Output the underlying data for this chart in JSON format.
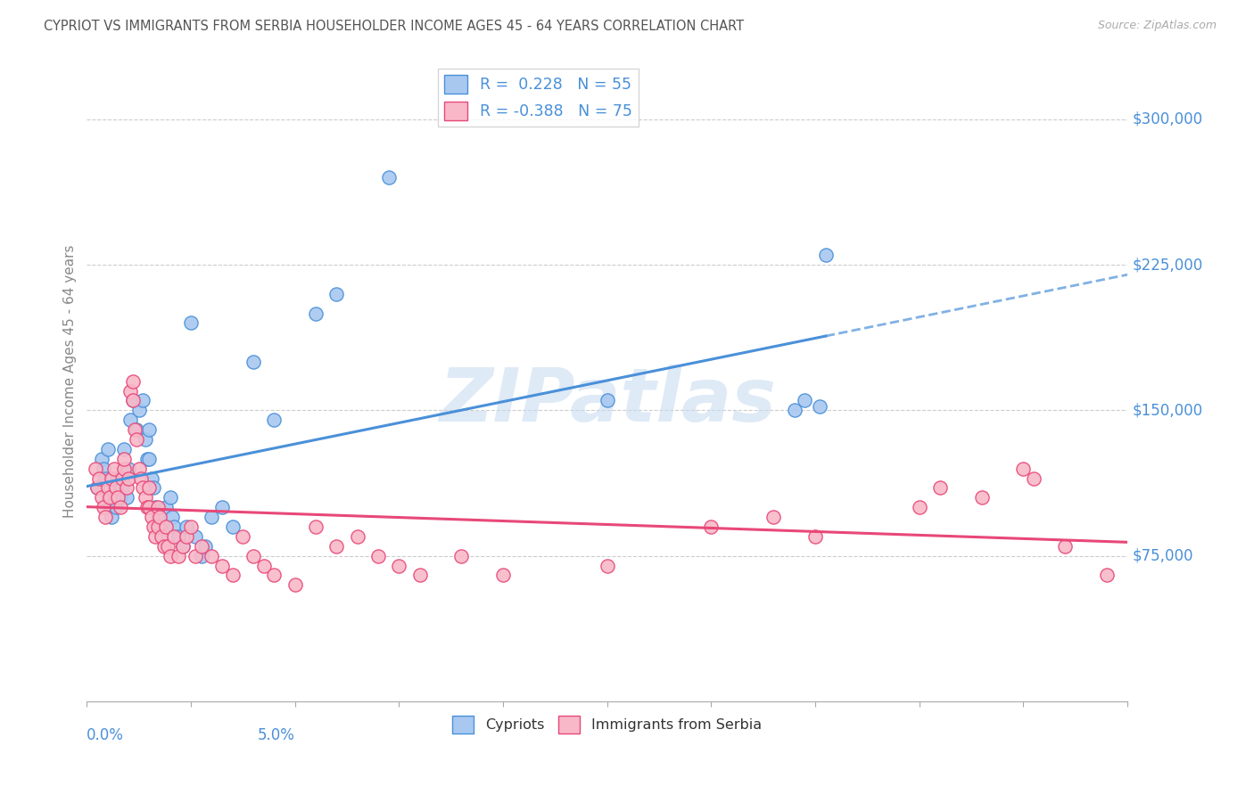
{
  "title": "CYPRIOT VS IMMIGRANTS FROM SERBIA HOUSEHOLDER INCOME AGES 45 - 64 YEARS CORRELATION CHART",
  "source": "Source: ZipAtlas.com",
  "ylabel": "Householder Income Ages 45 - 64 years",
  "xlim": [
    0.0,
    5.0
  ],
  "ylim": [
    0,
    330000
  ],
  "yticks": [
    0,
    75000,
    150000,
    225000,
    300000
  ],
  "ytick_labels": [
    "",
    "$75,000",
    "$150,000",
    "$225,000",
    "$300,000"
  ],
  "legend_R_blue": "0.228",
  "legend_N_blue": "55",
  "legend_R_pink": "-0.388",
  "legend_N_pink": "75",
  "blue_fill": "#A8C8F0",
  "blue_edge": "#4A90D9",
  "pink_fill": "#F8B8C8",
  "pink_edge": "#E84878",
  "blue_line": "#4A90D9",
  "pink_line": "#E84878",
  "watermark_color": "#C8DCF0",
  "background_color": "#FFFFFF",
  "grid_color": "#CCCCCC",
  "text_color_axis": "#4A90D9",
  "text_color_title": "#555555",
  "text_color_source": "#AAAAAA",
  "cypriot_x": [
    0.05,
    0.07,
    0.08,
    0.09,
    0.1,
    0.1,
    0.11,
    0.12,
    0.13,
    0.14,
    0.15,
    0.16,
    0.17,
    0.18,
    0.19,
    0.2,
    0.21,
    0.22,
    0.24,
    0.25,
    0.27,
    0.28,
    0.29,
    0.3,
    0.3,
    0.31,
    0.32,
    0.33,
    0.34,
    0.35,
    0.36,
    0.38,
    0.4,
    0.41,
    0.42,
    0.44,
    0.46,
    0.48,
    0.5,
    0.52,
    0.55,
    0.57,
    0.6,
    0.65,
    0.7,
    0.8,
    0.9,
    1.1,
    1.2,
    1.45,
    2.5,
    3.4,
    3.45,
    3.52,
    3.55
  ],
  "cypriot_y": [
    110000,
    125000,
    120000,
    115000,
    130000,
    105000,
    100000,
    95000,
    110000,
    100000,
    115000,
    105000,
    110000,
    130000,
    105000,
    120000,
    145000,
    155000,
    140000,
    150000,
    155000,
    135000,
    125000,
    140000,
    125000,
    115000,
    110000,
    100000,
    95000,
    90000,
    85000,
    100000,
    105000,
    95000,
    90000,
    85000,
    80000,
    90000,
    195000,
    85000,
    75000,
    80000,
    95000,
    100000,
    90000,
    175000,
    145000,
    200000,
    210000,
    270000,
    155000,
    150000,
    155000,
    152000,
    230000
  ],
  "serbia_x": [
    0.04,
    0.05,
    0.06,
    0.07,
    0.08,
    0.09,
    0.1,
    0.11,
    0.12,
    0.13,
    0.14,
    0.15,
    0.16,
    0.17,
    0.18,
    0.18,
    0.19,
    0.2,
    0.21,
    0.22,
    0.22,
    0.23,
    0.24,
    0.25,
    0.26,
    0.27,
    0.28,
    0.29,
    0.3,
    0.3,
    0.31,
    0.32,
    0.33,
    0.34,
    0.34,
    0.35,
    0.36,
    0.37,
    0.38,
    0.39,
    0.4,
    0.42,
    0.44,
    0.46,
    0.48,
    0.5,
    0.52,
    0.55,
    0.6,
    0.65,
    0.7,
    0.75,
    0.8,
    0.85,
    0.9,
    1.0,
    1.1,
    1.2,
    1.3,
    1.4,
    1.5,
    1.6,
    1.8,
    2.0,
    2.5,
    3.0,
    3.3,
    3.5,
    4.0,
    4.1,
    4.3,
    4.5,
    4.55,
    4.7,
    4.9
  ],
  "serbia_y": [
    120000,
    110000,
    115000,
    105000,
    100000,
    95000,
    110000,
    105000,
    115000,
    120000,
    110000,
    105000,
    100000,
    115000,
    120000,
    125000,
    110000,
    115000,
    160000,
    165000,
    155000,
    140000,
    135000,
    120000,
    115000,
    110000,
    105000,
    100000,
    100000,
    110000,
    95000,
    90000,
    85000,
    90000,
    100000,
    95000,
    85000,
    80000,
    90000,
    80000,
    75000,
    85000,
    75000,
    80000,
    85000,
    90000,
    75000,
    80000,
    75000,
    70000,
    65000,
    85000,
    75000,
    70000,
    65000,
    60000,
    90000,
    80000,
    85000,
    75000,
    70000,
    65000,
    75000,
    65000,
    70000,
    90000,
    95000,
    85000,
    100000,
    110000,
    105000,
    120000,
    115000,
    80000,
    65000
  ]
}
